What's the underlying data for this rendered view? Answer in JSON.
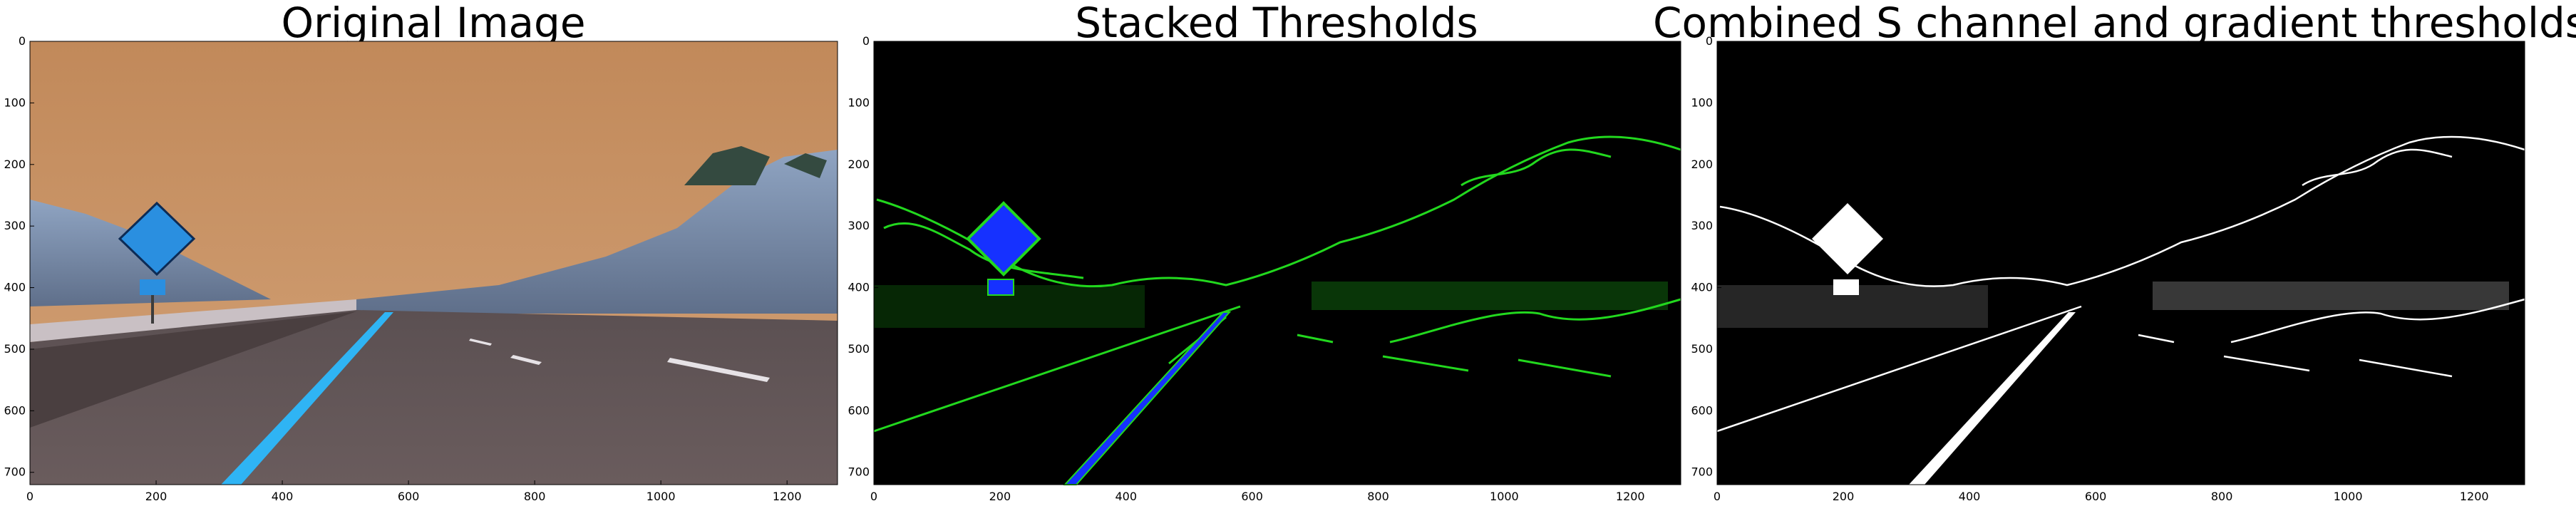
{
  "figure": {
    "panels": [
      {
        "id": "original",
        "title": "Original Image",
        "x_ticks": [
          "0",
          "200",
          "400",
          "600",
          "800",
          "1000",
          "1200"
        ],
        "y_ticks": [
          "0",
          "100",
          "200",
          "300",
          "400",
          "500",
          "600",
          "700"
        ]
      },
      {
        "id": "stacked",
        "title": "Stacked Thresholds",
        "x_ticks": [
          "0",
          "200",
          "400",
          "600",
          "800",
          "1000",
          "1200"
        ],
        "y_ticks": [
          "0",
          "100",
          "200",
          "300",
          "400",
          "500",
          "600",
          "700"
        ]
      },
      {
        "id": "combined",
        "title": "Combined S channel and gradient thresholds",
        "x_ticks": [
          "0",
          "200",
          "400",
          "600",
          "800",
          "1000",
          "1200"
        ],
        "y_ticks": [
          "0",
          "100",
          "200",
          "300",
          "400",
          "500",
          "600",
          "700"
        ]
      }
    ]
  },
  "colors": {
    "sky": "#c8915c",
    "stacked_edges": "#22d81e",
    "stacked_blue": "#1631ff",
    "lane_cyan": "#2fb4f4"
  }
}
